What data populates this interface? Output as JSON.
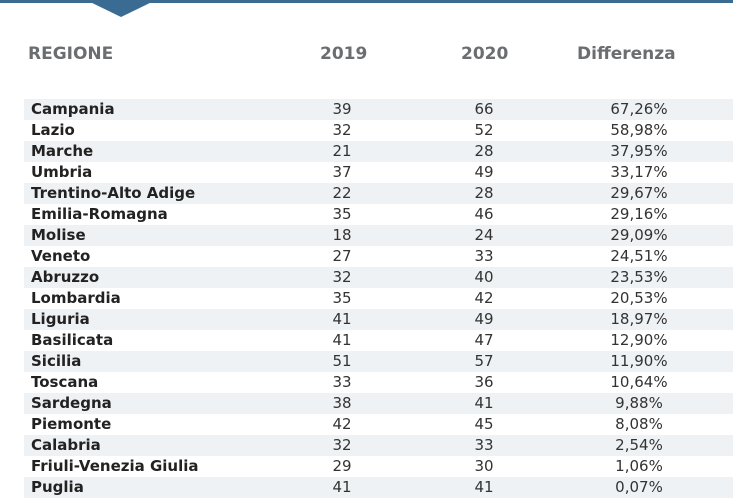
{
  "chart_data": {
    "type": "table",
    "columns": [
      "REGIONE",
      "2019",
      "2020",
      "Differenza"
    ],
    "rows": [
      {
        "region": "Campania",
        "y2019": "39",
        "y2020": "66",
        "diff": "67,26%"
      },
      {
        "region": "Lazio",
        "y2019": "32",
        "y2020": "52",
        "diff": "58,98%"
      },
      {
        "region": "Marche",
        "y2019": "21",
        "y2020": "28",
        "diff": "37,95%"
      },
      {
        "region": "Umbria",
        "y2019": "37",
        "y2020": "49",
        "diff": "33,17%"
      },
      {
        "region": "Trentino-Alto Adige",
        "y2019": "22",
        "y2020": "28",
        "diff": "29,67%"
      },
      {
        "region": "Emilia-Romagna",
        "y2019": "35",
        "y2020": "46",
        "diff": "29,16%"
      },
      {
        "region": "Molise",
        "y2019": "18",
        "y2020": "24",
        "diff": "29,09%"
      },
      {
        "region": "Veneto",
        "y2019": "27",
        "y2020": "33",
        "diff": "24,51%"
      },
      {
        "region": "Abruzzo",
        "y2019": "32",
        "y2020": "40",
        "diff": "23,53%"
      },
      {
        "region": "Lombardia",
        "y2019": "35",
        "y2020": "42",
        "diff": "20,53%"
      },
      {
        "region": "Liguria",
        "y2019": "41",
        "y2020": "49",
        "diff": "18,97%"
      },
      {
        "region": "Basilicata",
        "y2019": "41",
        "y2020": "47",
        "diff": "12,90%"
      },
      {
        "region": "Sicilia",
        "y2019": "51",
        "y2020": "57",
        "diff": "11,90%"
      },
      {
        "region": "Toscana",
        "y2019": "33",
        "y2020": "36",
        "diff": "10,64%"
      },
      {
        "region": "Sardegna",
        "y2019": "38",
        "y2020": "41",
        "diff": "9,88%"
      },
      {
        "region": "Piemonte",
        "y2019": "42",
        "y2020": "45",
        "diff": "8,08%"
      },
      {
        "region": "Calabria",
        "y2019": "32",
        "y2020": "33",
        "diff": "2,54%"
      },
      {
        "region": "Friuli-Venezia Giulia",
        "y2019": "29",
        "y2020": "30",
        "diff": "1,06%"
      },
      {
        "region": "Puglia",
        "y2019": "41",
        "y2020": "41",
        "diff": "0,07%"
      }
    ]
  },
  "colors": {
    "accent": "#3a6c93",
    "header_text": "#6b6e70",
    "stripe": "#eef2f4"
  }
}
